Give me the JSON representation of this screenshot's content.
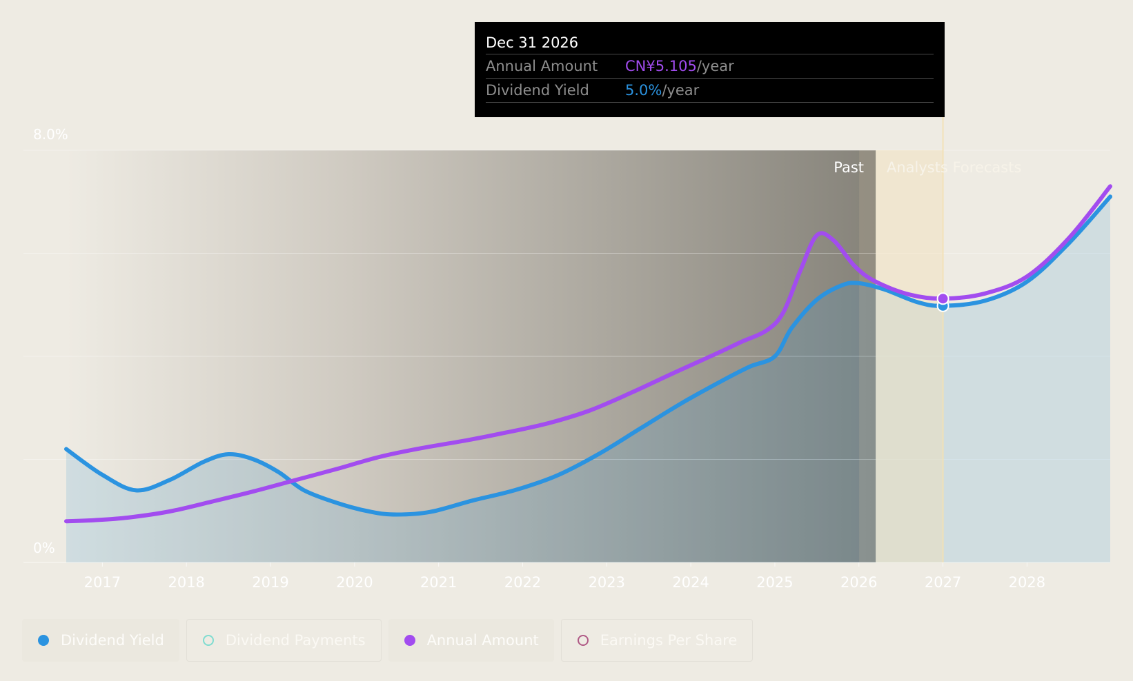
{
  "tooltip": {
    "date": "Dec 31 2026",
    "rows": [
      {
        "label": "Annual Amount",
        "value": "CN¥5.105",
        "unit": "/year"
      },
      {
        "label": "Dividend Yield",
        "value": "5.0%",
        "unit": "/year"
      }
    ]
  },
  "regions": {
    "past_label": "Past",
    "forecast_label": "Analysts Forecasts"
  },
  "legend": {
    "items": [
      {
        "label": "Dividend Yield",
        "color": "#2b93e0",
        "active": true
      },
      {
        "label": "Dividend Payments",
        "color": "#7fdcd0",
        "active": false
      },
      {
        "label": "Annual Amount",
        "color": "#a24cef",
        "active": true
      },
      {
        "label": "Earnings Per Share",
        "color": "#b05a86",
        "active": false
      }
    ]
  },
  "chart_data": {
    "type": "line",
    "title": "",
    "xlabel": "",
    "ylabel": "",
    "x_ticks": [
      "2017",
      "2018",
      "2019",
      "2020",
      "2021",
      "2022",
      "2023",
      "2024",
      "2025",
      "2026",
      "2027",
      "2028"
    ],
    "y_ticks": [
      "0%",
      "8.0%"
    ],
    "xlim": [
      2016.57,
      2028.99
    ],
    "ylim": [
      0,
      8.0
    ],
    "past_end": 2026.2,
    "hover_x": 2027.0,
    "series": [
      {
        "name": "Dividend Yield",
        "color": "#2b93e0",
        "filled": true,
        "points": [
          [
            2016.57,
            2.2
          ],
          [
            2017.0,
            1.7
          ],
          [
            2017.4,
            1.4
          ],
          [
            2017.8,
            1.6
          ],
          [
            2018.2,
            1.95
          ],
          [
            2018.5,
            2.1
          ],
          [
            2018.8,
            2.0
          ],
          [
            2019.1,
            1.75
          ],
          [
            2019.4,
            1.4
          ],
          [
            2019.8,
            1.15
          ],
          [
            2020.2,
            0.98
          ],
          [
            2020.5,
            0.93
          ],
          [
            2020.9,
            0.98
          ],
          [
            2021.4,
            1.2
          ],
          [
            2021.9,
            1.4
          ],
          [
            2022.4,
            1.68
          ],
          [
            2022.9,
            2.1
          ],
          [
            2023.4,
            2.6
          ],
          [
            2023.9,
            3.1
          ],
          [
            2024.4,
            3.55
          ],
          [
            2024.7,
            3.8
          ],
          [
            2025.0,
            4.0
          ],
          [
            2025.2,
            4.55
          ],
          [
            2025.5,
            5.1
          ],
          [
            2025.8,
            5.38
          ],
          [
            2026.0,
            5.42
          ],
          [
            2026.3,
            5.3
          ],
          [
            2026.7,
            5.05
          ],
          [
            2027.0,
            4.98
          ],
          [
            2027.5,
            5.08
          ],
          [
            2028.0,
            5.45
          ],
          [
            2028.5,
            6.2
          ],
          [
            2028.99,
            7.1
          ]
        ]
      },
      {
        "name": "Annual Amount",
        "color": "#a24cef",
        "filled": false,
        "points": [
          [
            2016.57,
            0.8
          ],
          [
            2016.9,
            0.82
          ],
          [
            2017.3,
            0.87
          ],
          [
            2017.8,
            0.99
          ],
          [
            2018.3,
            1.18
          ],
          [
            2018.8,
            1.38
          ],
          [
            2019.3,
            1.6
          ],
          [
            2019.8,
            1.82
          ],
          [
            2020.3,
            2.05
          ],
          [
            2020.8,
            2.22
          ],
          [
            2021.3,
            2.36
          ],
          [
            2021.8,
            2.52
          ],
          [
            2022.3,
            2.7
          ],
          [
            2022.8,
            2.95
          ],
          [
            2023.3,
            3.3
          ],
          [
            2023.8,
            3.68
          ],
          [
            2024.3,
            4.05
          ],
          [
            2024.6,
            4.28
          ],
          [
            2024.9,
            4.5
          ],
          [
            2025.1,
            4.85
          ],
          [
            2025.3,
            5.65
          ],
          [
            2025.5,
            6.35
          ],
          [
            2025.7,
            6.25
          ],
          [
            2025.95,
            5.75
          ],
          [
            2026.2,
            5.45
          ],
          [
            2026.6,
            5.2
          ],
          [
            2027.0,
            5.12
          ],
          [
            2027.5,
            5.22
          ],
          [
            2028.0,
            5.55
          ],
          [
            2028.5,
            6.3
          ],
          [
            2028.99,
            7.3
          ]
        ]
      }
    ]
  }
}
